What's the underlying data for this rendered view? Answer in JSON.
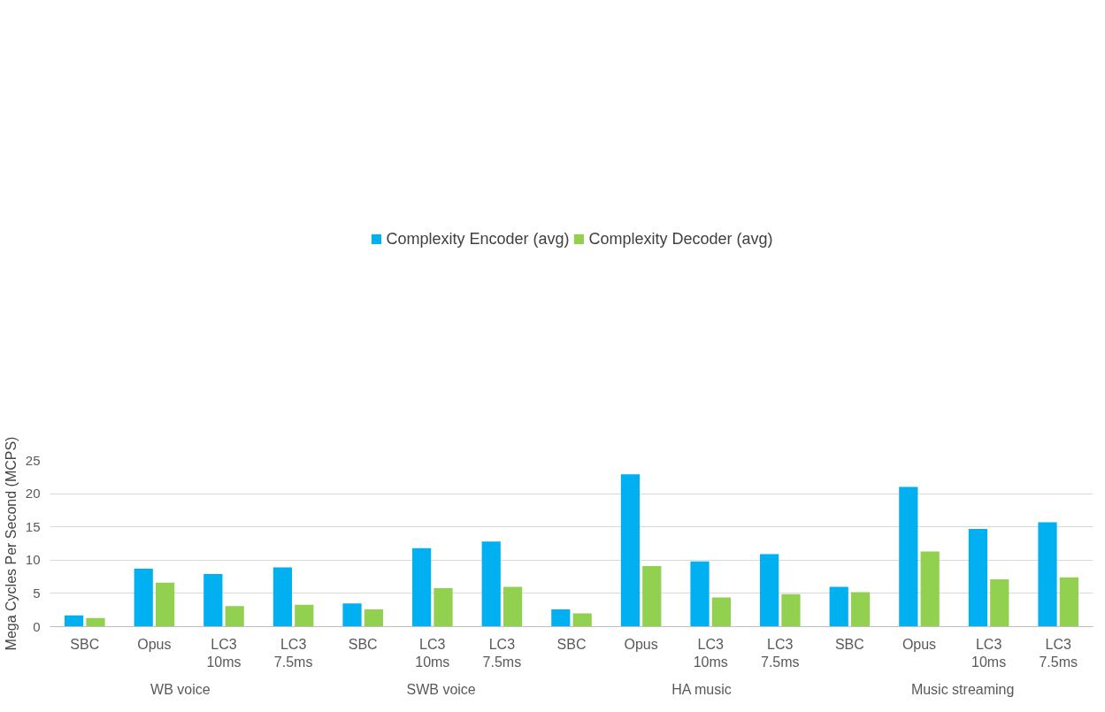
{
  "chart_data": {
    "type": "bar",
    "ylabel": "Mega Cycles Per Second (MCPS)",
    "categories": [
      "SBC",
      "Opus",
      "LC3 10ms",
      "LC3 7.5ms",
      "SBC",
      "LC3 10ms",
      "LC3 7.5ms",
      "SBC",
      "Opus",
      "LC3 10ms",
      "LC3 7.5ms",
      "SBC",
      "Opus",
      "LC3 10ms",
      "LC3 7.5ms"
    ],
    "annotations": [
      "WB voice",
      "SWB voice",
      "HA music",
      "Music streaming"
    ],
    "series": [
      {
        "name": "Complexity Encoder (avg)",
        "color": "#00b0f0",
        "values": [
          1.7,
          8.7,
          7.9,
          8.9,
          3.5,
          11.8,
          12.8,
          2.6,
          22.9,
          9.8,
          10.9,
          6.0,
          21.0,
          14.7,
          15.7
        ]
      },
      {
        "name": "Complexity Decoder (avg)",
        "color": "#92d050",
        "values": [
          1.3,
          6.6,
          3.1,
          3.3,
          2.6,
          5.8,
          6.0,
          2.0,
          9.1,
          4.4,
          4.9,
          5.2,
          11.3,
          7.1,
          7.4
        ]
      }
    ],
    "ylim": [
      0,
      25
    ],
    "yticks": [
      0,
      5,
      10,
      15,
      20,
      25
    ],
    "grid": "y",
    "legend": "top"
  }
}
